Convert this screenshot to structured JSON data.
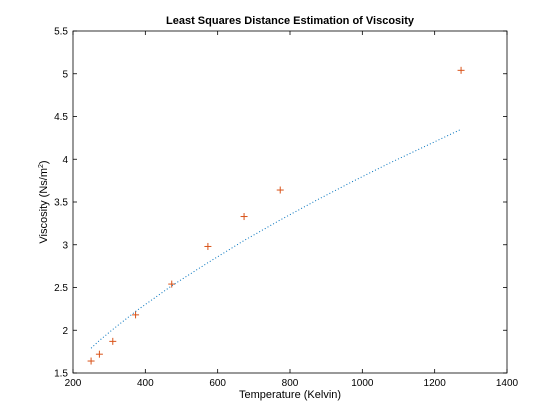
{
  "chart_data": {
    "type": "scatter",
    "title": "Least Squares Distance Estimation of Viscosity",
    "xlabel": "Temperature (Kelvin)",
    "ylabel_main": "Viscosity (Ns/m",
    "ylabel_sup": "2",
    "ylabel_close": ")",
    "xlim": [
      200,
      1400
    ],
    "ylim": [
      1.5,
      5.5
    ],
    "xticks": [
      200,
      400,
      600,
      800,
      1000,
      1200,
      1400
    ],
    "yticks": [
      1.5,
      2,
      2.5,
      3,
      3.5,
      4,
      4.5,
      5,
      5.5
    ],
    "grid": false,
    "series": [
      {
        "style": "markers",
        "marker": "plus",
        "color": "#d95319",
        "x": [
          250,
          273,
          310,
          373,
          473,
          573,
          673,
          773,
          1273
        ],
        "y": [
          1.64,
          1.72,
          1.87,
          2.18,
          2.54,
          2.98,
          3.33,
          3.64,
          5.04
        ]
      },
      {
        "style": "dotted-line",
        "color": "#0072bd",
        "x": [
          250,
          273,
          310,
          373,
          473,
          573,
          673,
          773,
          873,
          973,
          1073,
          1173,
          1273
        ],
        "y": [
          1.79,
          1.88,
          2.01,
          2.22,
          2.52,
          2.79,
          3.05,
          3.29,
          3.52,
          3.74,
          3.95,
          4.15,
          4.35
        ]
      }
    ]
  }
}
